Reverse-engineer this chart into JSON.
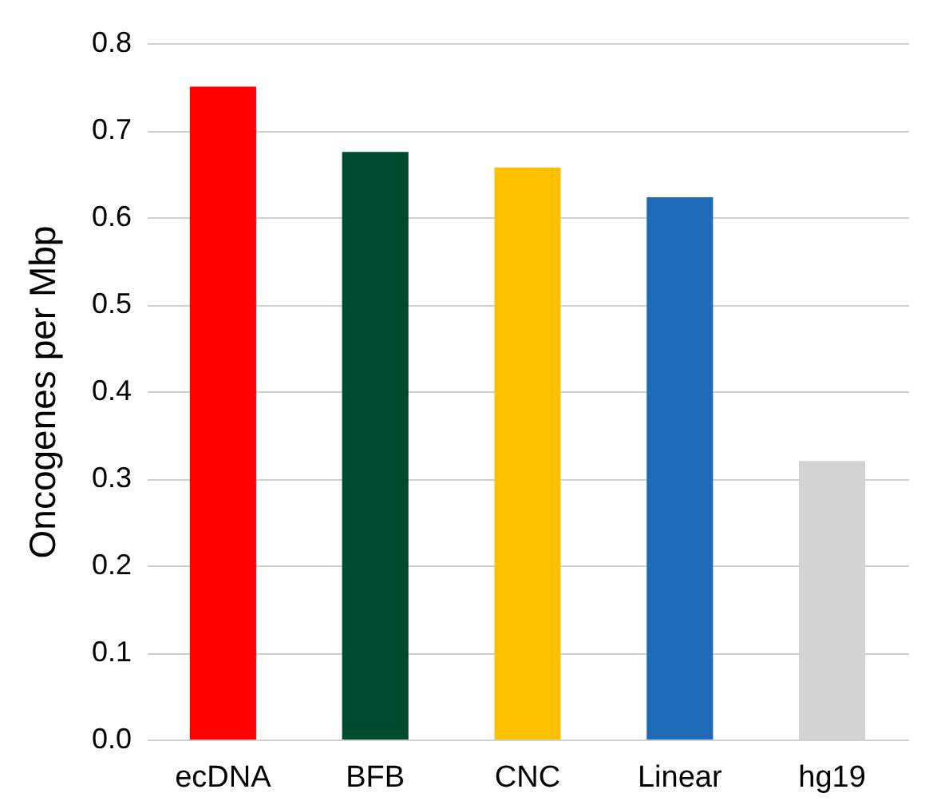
{
  "chart_data": {
    "type": "bar",
    "ylabel": "Oncogenes per Mbp",
    "categories": [
      "ecDNA",
      "BFB",
      "CNC",
      "Linear",
      "hg19"
    ],
    "values": [
      0.75,
      0.675,
      0.657,
      0.623,
      0.32
    ],
    "colors": [
      "#ff0000",
      "#004a2f",
      "#ffc000",
      "#1f6bb8",
      "#d3d3d3"
    ],
    "ylim": [
      0,
      0.8
    ],
    "yticks": [
      {
        "value": 0,
        "label": "0.0"
      },
      {
        "value": 0.1,
        "label": "0.1"
      },
      {
        "value": 0.2,
        "label": "0.2"
      },
      {
        "value": 0.3,
        "label": "0.3"
      },
      {
        "value": 0.4,
        "label": "0.4"
      },
      {
        "value": 0.5,
        "label": "0.5"
      },
      {
        "value": 0.6,
        "label": "0.6"
      },
      {
        "value": 0.7,
        "label": "0.7"
      },
      {
        "value": 0.8,
        "label": "0.8"
      }
    ],
    "grid": "y"
  }
}
